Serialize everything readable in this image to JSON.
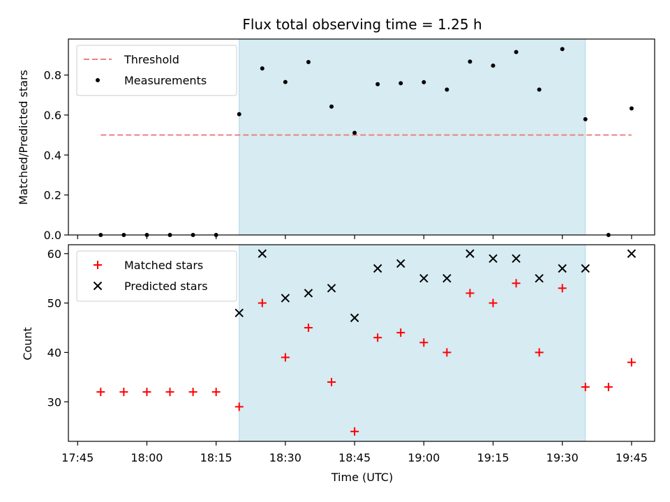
{
  "title": "Flux total observing time = 1.25 h",
  "colors": {
    "threshold": "#f08080",
    "measurement": "#000000",
    "matched": "#ff0000",
    "predicted": "#000000",
    "highlight": "#add8e6"
  },
  "chart_data": [
    {
      "type": "scatter",
      "ylabel": "Matched/Predicted stars",
      "ylim": [
        0,
        0.98
      ],
      "yticks": [
        "0.0",
        "0.2",
        "0.4",
        "0.6",
        "0.8"
      ],
      "ytick_values": [
        0,
        0.2,
        0.4,
        0.6,
        0.8
      ],
      "xlim": [
        "17:43",
        "19:50"
      ],
      "highlight_span": [
        "18:20",
        "19:35"
      ],
      "legend_position": "top-left",
      "threshold": {
        "name": "Threshold",
        "value": 0.5,
        "x_range": [
          "17:50",
          "19:45"
        ]
      },
      "series": [
        {
          "name": "Measurements",
          "x": [
            "17:50",
            "17:55",
            "18:00",
            "18:05",
            "18:10",
            "18:15",
            "18:20",
            "18:25",
            "18:30",
            "18:35",
            "18:40",
            "18:45",
            "18:50",
            "18:55",
            "19:00",
            "19:05",
            "19:10",
            "19:15",
            "19:20",
            "19:25",
            "19:30",
            "19:35",
            "19:40",
            "19:45"
          ],
          "y": [
            0,
            0,
            0,
            0,
            0,
            0,
            0.604,
            0.833,
            0.765,
            0.865,
            0.642,
            0.511,
            0.754,
            0.759,
            0.764,
            0.727,
            0.867,
            0.847,
            0.915,
            0.727,
            0.93,
            0.579,
            0,
            0.633
          ]
        }
      ]
    },
    {
      "type": "scatter",
      "ylabel": "Count",
      "xlabel": "Time (UTC)",
      "ylim": [
        22,
        61.8
      ],
      "yticks": [
        "30",
        "40",
        "50",
        "60"
      ],
      "ytick_values": [
        30,
        40,
        50,
        60
      ],
      "xlim": [
        "17:43",
        "19:50"
      ],
      "xticks": [
        "17:45",
        "18:00",
        "18:15",
        "18:30",
        "18:45",
        "19:00",
        "19:15",
        "19:30",
        "19:45"
      ],
      "highlight_span": [
        "18:20",
        "19:35"
      ],
      "legend_position": "top-left",
      "series": [
        {
          "name": "Matched stars",
          "marker": "plus",
          "x": [
            "17:50",
            "17:55",
            "18:00",
            "18:05",
            "18:10",
            "18:15",
            "18:20",
            "18:25",
            "18:30",
            "18:35",
            "18:40",
            "18:45",
            "18:50",
            "18:55",
            "19:00",
            "19:05",
            "19:10",
            "19:15",
            "19:20",
            "19:25",
            "19:30",
            "19:35",
            "19:40",
            "19:45"
          ],
          "y": [
            32,
            32,
            32,
            32,
            32,
            32,
            29,
            50,
            39,
            45,
            34,
            24,
            43,
            44,
            42,
            40,
            52,
            50,
            54,
            40,
            53,
            33,
            33,
            38
          ]
        },
        {
          "name": "Predicted stars",
          "marker": "x",
          "x": [
            "18:20",
            "18:25",
            "18:30",
            "18:35",
            "18:40",
            "18:45",
            "18:50",
            "18:55",
            "19:00",
            "19:05",
            "19:10",
            "19:15",
            "19:20",
            "19:25",
            "19:30",
            "19:35",
            "19:45"
          ],
          "y": [
            48,
            60,
            51,
            52,
            53,
            47,
            57,
            58,
            55,
            55,
            60,
            59,
            59,
            55,
            57,
            57,
            60
          ]
        }
      ]
    }
  ]
}
